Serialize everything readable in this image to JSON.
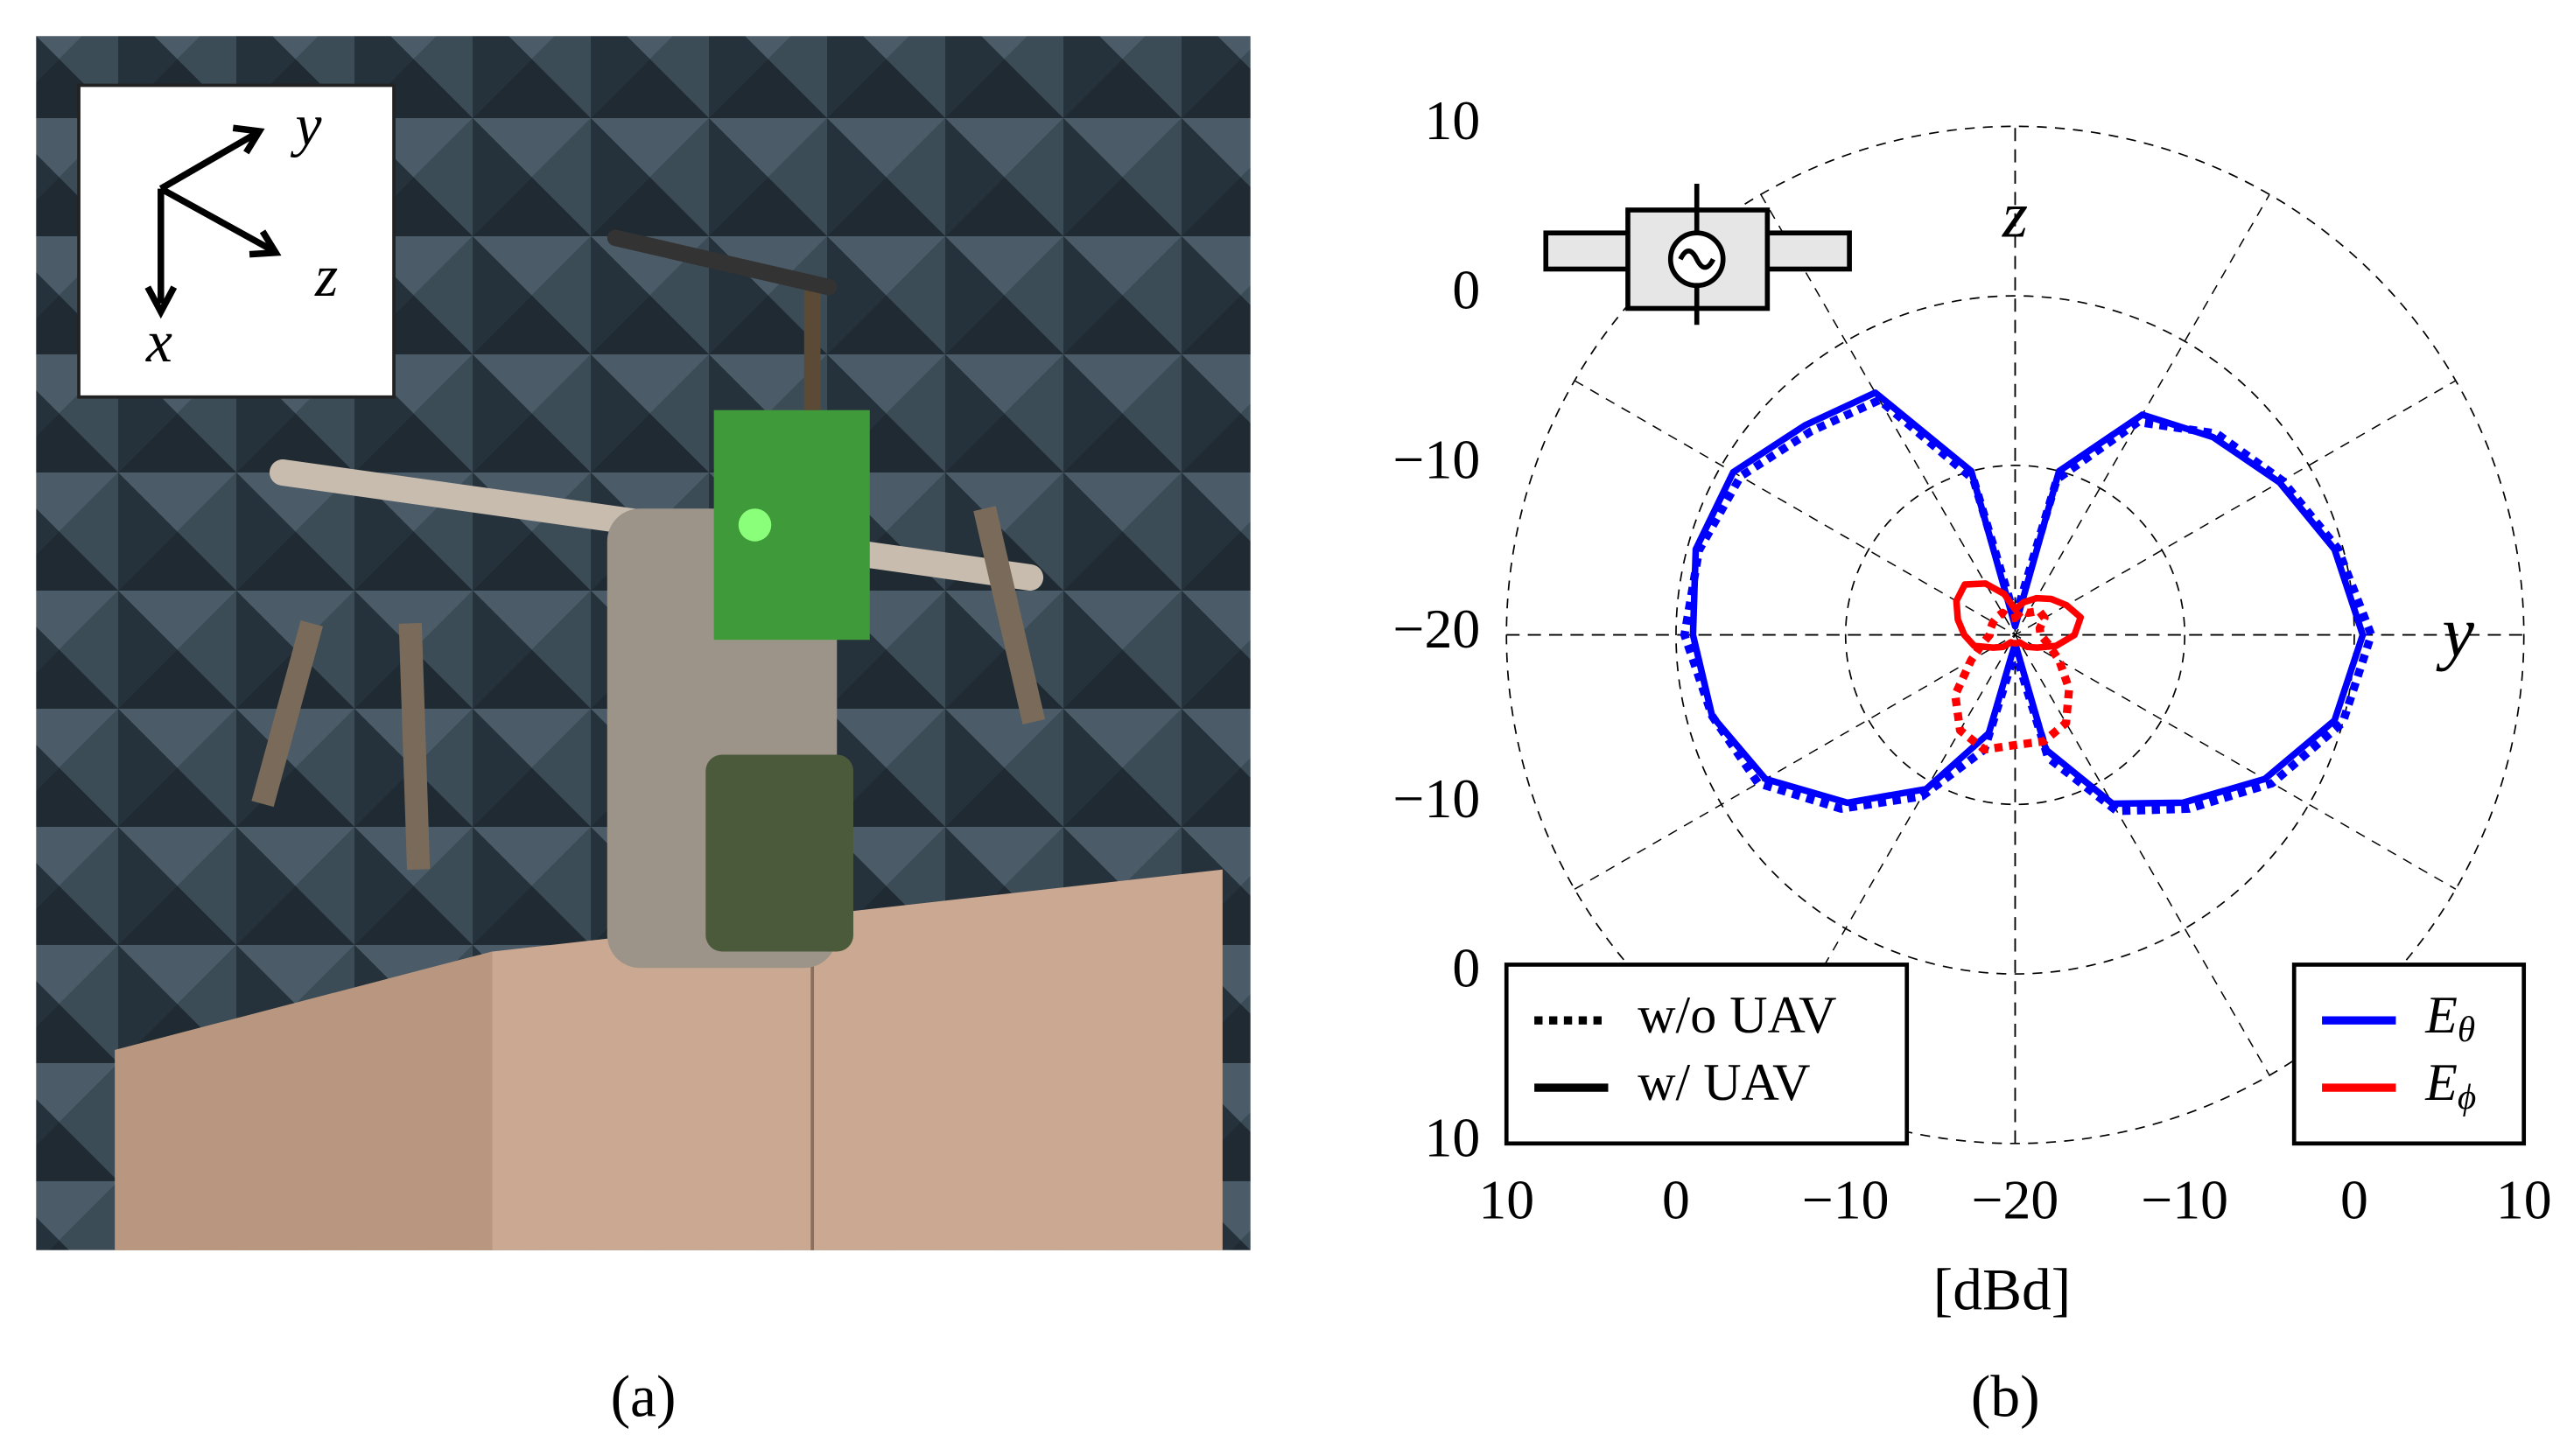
{
  "panel_a": {
    "label": "(a)",
    "axes": [
      "y",
      "z",
      "x"
    ]
  },
  "chart_data": {
    "type": "polar",
    "label": "(b)",
    "radial_label": "[dBd]",
    "axis_labels": [
      "z",
      "y"
    ],
    "rlim": [
      -20,
      10
    ],
    "rticks": [
      {
        "value": -20,
        "label": "−20"
      },
      {
        "value": -10,
        "label": "−10"
      },
      0,
      10
    ],
    "grid": true,
    "theta": [
      0,
      15,
      30,
      45,
      60,
      75,
      90,
      105,
      120,
      135,
      150,
      165,
      180,
      195,
      210,
      225,
      240,
      255,
      270,
      285,
      300,
      315,
      330,
      345
    ],
    "style_legend": [
      {
        "label": "w/o UAV",
        "dash": "dotted"
      },
      {
        "label": "w/ UAV",
        "dash": "solid"
      }
    ],
    "color_legend": [
      {
        "symbol": "E",
        "subscript": "θ",
        "color": "#0000ff"
      },
      {
        "symbol": "E",
        "subscript": "ϕ",
        "color": "#ff0000"
      }
    ],
    "series": [
      {
        "color": "#0000ff",
        "dash": "dotted",
        "values": [
          -19,
          -10.5,
          -5.5,
          -3.2,
          -1.8,
          -0.3,
          1,
          0,
          -2.5,
          -5.5,
          -8,
          -12.5,
          -19,
          -13,
          -9,
          -5.5,
          -2.5,
          -1.5,
          -0.5,
          -0.7,
          -1.3,
          -3,
          -4,
          -10.5
        ]
      },
      {
        "color": "#0000ff",
        "dash": "solid",
        "values": [
          -19.5,
          -10,
          -5,
          -3.5,
          -2,
          -0.5,
          0.5,
          -0.5,
          -3,
          -6,
          -8.5,
          -13,
          -19.5,
          -14,
          -9.5,
          -6,
          -3,
          -1.5,
          -1,
          -0.5,
          -0.8,
          -2.5,
          -3.5,
          -10
        ]
      },
      {
        "color": "#ff0000",
        "dash": "dotted",
        "values": [
          -19,
          -18.5,
          -18.5,
          -18,
          -18,
          -18.5,
          -18.5,
          -18,
          -17,
          -15.5,
          -14,
          -13.5,
          -13.5,
          -13,
          -13.5,
          -15,
          -17,
          -18,
          -18.5,
          -18.5,
          -18.5,
          -18.5,
          -18.5,
          -19
        ]
      },
      {
        "color": "#ff0000",
        "dash": "solid",
        "values": [
          -18.5,
          -18,
          -17.5,
          -17,
          -16.5,
          -16,
          -16.5,
          -17.5,
          -18.5,
          -19,
          -19.5,
          -19.5,
          -19.5,
          -19.5,
          -19.5,
          -19,
          -18.5,
          -17.5,
          -17,
          -16.5,
          -16,
          -15.8,
          -16.5,
          -17.5
        ]
      }
    ]
  }
}
